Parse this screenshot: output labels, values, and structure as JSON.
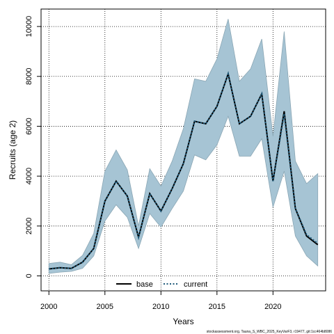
{
  "chart_data": {
    "type": "line",
    "title": "",
    "xlabel": "Years",
    "ylabel": "Recruits (age 2)",
    "xlim": [
      1999.3,
      2024.7
    ],
    "ylim": [
      -600,
      10700
    ],
    "xticks": [
      2000,
      2005,
      2010,
      2015,
      2020
    ],
    "yticks": [
      0,
      2000,
      4000,
      6000,
      8000,
      10000
    ],
    "grid": true,
    "legend_position": "bottom-center",
    "x": [
      2000,
      2001,
      2002,
      2003,
      2004,
      2005,
      2006,
      2007,
      2008,
      2009,
      2010,
      2011,
      2012,
      2013,
      2014,
      2015,
      2016,
      2017,
      2018,
      2019,
      2020,
      2021,
      2022,
      2023,
      2024
    ],
    "series": [
      {
        "name": "base",
        "color": "#000000",
        "style": "solid",
        "values": [
          280,
          330,
          300,
          550,
          1100,
          3000,
          3800,
          3200,
          1550,
          3300,
          2600,
          3500,
          4500,
          6200,
          6100,
          6800,
          8100,
          6100,
          6400,
          7300,
          3800,
          6600,
          2700,
          1600,
          1250
        ]
      },
      {
        "name": "current",
        "color": "#1f5a7a",
        "style": "dotted",
        "values": [
          280,
          330,
          300,
          550,
          1100,
          3000,
          3800,
          3200,
          1550,
          3300,
          2600,
          3500,
          4500,
          6200,
          6100,
          6800,
          8100,
          6100,
          6400,
          7300,
          3800,
          6500,
          2700,
          1650,
          1300
        ]
      }
    ],
    "band": {
      "color": "#a6c4d4",
      "edge_color": "#8aa6b4",
      "upper": [
        500,
        550,
        450,
        820,
        1700,
        4200,
        5050,
        4250,
        2000,
        4300,
        3600,
        4600,
        5900,
        7900,
        7800,
        8700,
        10300,
        7800,
        8300,
        9500,
        5600,
        9800,
        4600,
        3700,
        4100
      ],
      "lower": [
        100,
        150,
        180,
        300,
        800,
        2200,
        2850,
        2350,
        1100,
        2500,
        1950,
        2700,
        3400,
        4850,
        4650,
        5250,
        6400,
        4800,
        4800,
        5500,
        2750,
        4200,
        1600,
        800,
        400
      ]
    }
  },
  "footnote": "stockassessment.org, Tauna_S_WBC_2025_KeyVarF3, r19477, git:1cc464b8086"
}
